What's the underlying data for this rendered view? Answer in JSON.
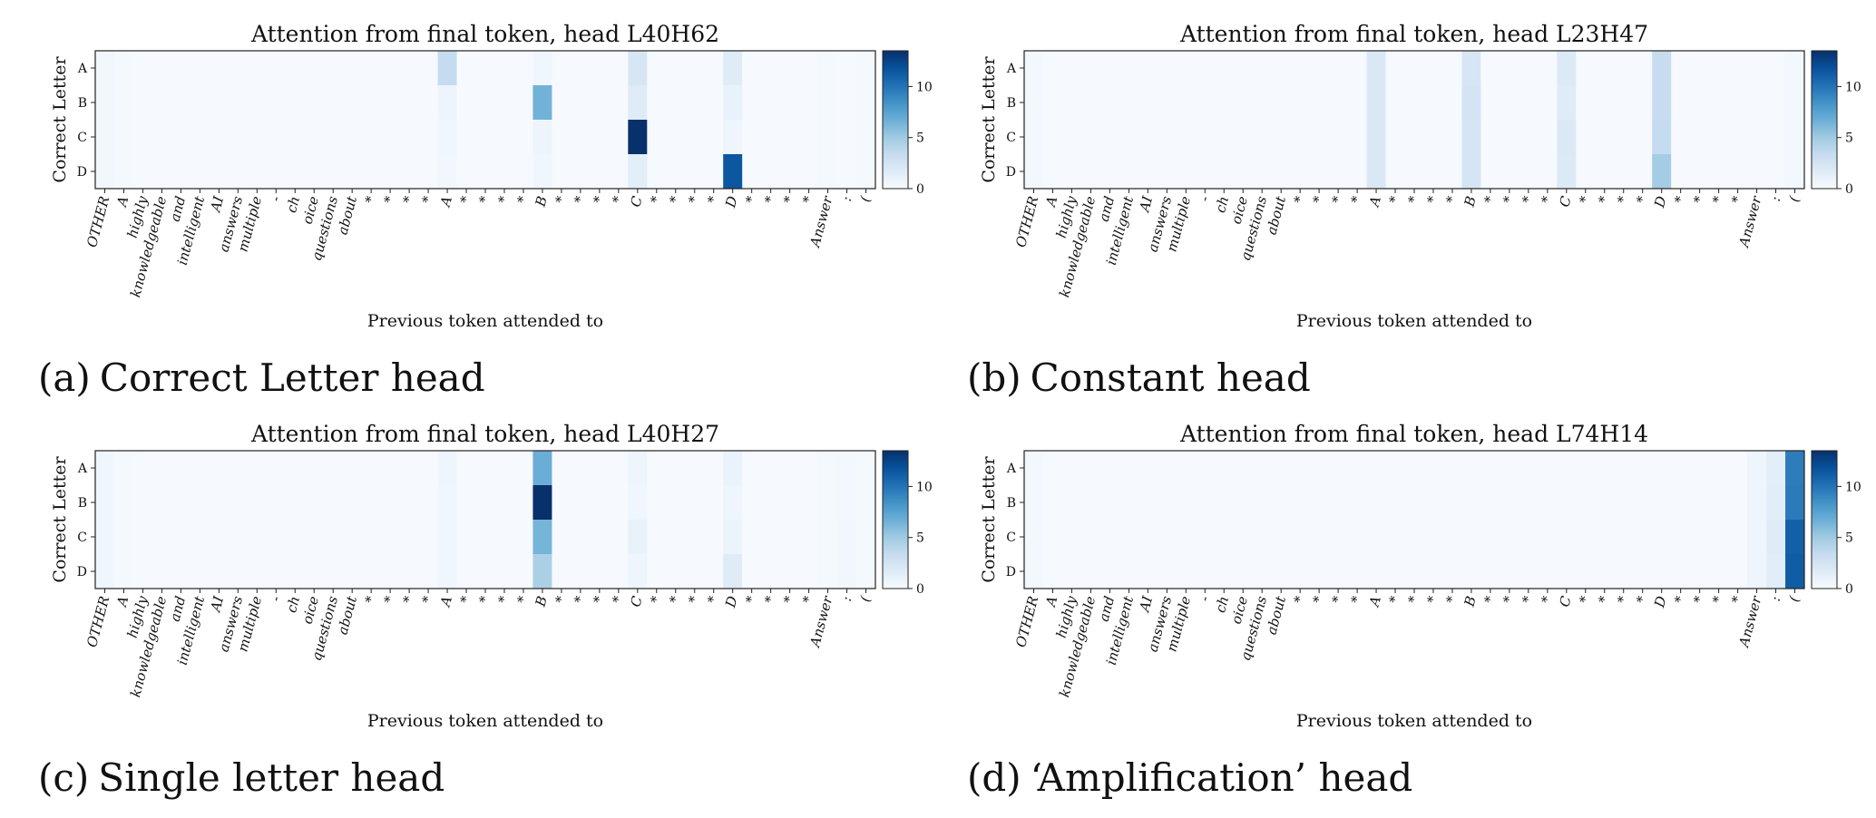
{
  "tokens": [
    "OTHER",
    "A",
    "highly",
    "knowledgeable",
    "and",
    "intelligent",
    "AI",
    "answers",
    "multiple",
    "-",
    "ch",
    "oice",
    "questions",
    "about",
    "*",
    "*",
    "*",
    "*",
    "A",
    "*",
    "*",
    "*",
    "*",
    "B",
    "*",
    "*",
    "*",
    "*",
    "C",
    "*",
    "*",
    "*",
    "*",
    "D",
    "*",
    "*",
    "*",
    "*",
    "Answer",
    ":",
    "("
  ],
  "rows": [
    "A",
    "B",
    "C",
    "D"
  ],
  "colorbar_ticks": [
    "0",
    "5",
    "10"
  ],
  "colorbar_max": 13.5,
  "palette": [
    "#f7fbff",
    "#deebf7",
    "#c6dbef",
    "#9ecae1",
    "#6baed6",
    "#4292c6",
    "#2171b5",
    "#08519c",
    "#08306b"
  ],
  "panels": [
    {
      "id": "a",
      "caption_label": "(a)",
      "caption_text": "Correct Letter head"
    },
    {
      "id": "b",
      "caption_label": "(b)",
      "caption_text": "Constant head"
    },
    {
      "id": "c",
      "caption_label": "(c)",
      "caption_text": "Single letter head"
    },
    {
      "id": "d",
      "caption_label": "(d)",
      "caption_text": "‘Amplification’ head"
    }
  ],
  "chart_data": [
    {
      "type": "heatmap",
      "title": "Attention from final token, head L40H62",
      "xlabel": "Previous token attended to",
      "ylabel": "Correct Letter",
      "zlim": [
        0,
        13.5
      ],
      "values": {
        "A": [
          0.4,
          0.2,
          0.1,
          0.1,
          0.1,
          0.1,
          0.1,
          0.1,
          0.1,
          0.1,
          0.1,
          0.1,
          0.1,
          0.1,
          0.1,
          0.1,
          0.1,
          0.1,
          3.4,
          0.1,
          0.1,
          0.1,
          0.1,
          0.5,
          0.1,
          0.1,
          0.1,
          0.1,
          2.2,
          0.1,
          0.1,
          0.1,
          0.1,
          1.6,
          0.1,
          0.1,
          0.1,
          0.1,
          0.2,
          0.1,
          0.2
        ],
        "B": [
          0.4,
          0.2,
          0.1,
          0.1,
          0.1,
          0.1,
          0.1,
          0.1,
          0.1,
          0.1,
          0.1,
          0.1,
          0.1,
          0.1,
          0.1,
          0.1,
          0.1,
          0.1,
          0.7,
          0.1,
          0.1,
          0.1,
          0.1,
          6.5,
          0.1,
          0.1,
          0.1,
          0.1,
          1.6,
          0.1,
          0.1,
          0.1,
          0.1,
          1.0,
          0.1,
          0.1,
          0.1,
          0.1,
          0.2,
          0.1,
          0.2
        ],
        "C": [
          0.4,
          0.2,
          0.1,
          0.1,
          0.1,
          0.1,
          0.1,
          0.1,
          0.1,
          0.1,
          0.1,
          0.1,
          0.1,
          0.1,
          0.1,
          0.1,
          0.1,
          0.1,
          0.5,
          0.1,
          0.1,
          0.1,
          0.1,
          0.7,
          0.1,
          0.1,
          0.1,
          0.1,
          13.5,
          0.1,
          0.1,
          0.1,
          0.1,
          0.6,
          0.1,
          0.1,
          0.1,
          0.1,
          0.2,
          0.1,
          0.2
        ],
        "D": [
          0.4,
          0.2,
          0.1,
          0.1,
          0.1,
          0.1,
          0.1,
          0.1,
          0.1,
          0.1,
          0.1,
          0.1,
          0.1,
          0.1,
          0.1,
          0.1,
          0.1,
          0.1,
          0.4,
          0.1,
          0.1,
          0.1,
          0.1,
          0.5,
          0.1,
          0.1,
          0.1,
          0.1,
          1.4,
          0.1,
          0.1,
          0.1,
          0.1,
          11.5,
          0.1,
          0.1,
          0.1,
          0.1,
          0.2,
          0.1,
          0.2
        ]
      }
    },
    {
      "type": "heatmap",
      "title": "Attention from final token, head L23H47",
      "xlabel": "Previous token attended to",
      "ylabel": "Correct Letter",
      "zlim": [
        0,
        13.5
      ],
      "values": {
        "A": [
          0.3,
          0.1,
          0.1,
          0.1,
          0.1,
          0.1,
          0.1,
          0.1,
          0.1,
          0.1,
          0.1,
          0.1,
          0.1,
          0.1,
          0.1,
          0.1,
          0.1,
          0.1,
          2.0,
          0.1,
          0.1,
          0.1,
          0.1,
          2.2,
          0.1,
          0.1,
          0.1,
          0.1,
          1.8,
          0.1,
          0.1,
          0.1,
          0.1,
          3.3,
          0.1,
          0.1,
          0.1,
          0.1,
          0.1,
          0.1,
          0.3
        ],
        "B": [
          0.3,
          0.1,
          0.1,
          0.1,
          0.1,
          0.1,
          0.1,
          0.1,
          0.1,
          0.1,
          0.1,
          0.1,
          0.1,
          0.1,
          0.1,
          0.1,
          0.1,
          0.1,
          2.0,
          0.1,
          0.1,
          0.1,
          0.1,
          2.4,
          0.1,
          0.1,
          0.1,
          0.1,
          1.6,
          0.1,
          0.1,
          0.1,
          0.1,
          3.3,
          0.1,
          0.1,
          0.1,
          0.1,
          0.1,
          0.1,
          0.3
        ],
        "C": [
          0.3,
          0.1,
          0.1,
          0.1,
          0.1,
          0.1,
          0.1,
          0.1,
          0.1,
          0.1,
          0.1,
          0.1,
          0.1,
          0.1,
          0.1,
          0.1,
          0.1,
          0.1,
          2.0,
          0.1,
          0.1,
          0.1,
          0.1,
          2.3,
          0.1,
          0.1,
          0.1,
          0.1,
          1.9,
          0.1,
          0.1,
          0.1,
          0.1,
          3.4,
          0.1,
          0.1,
          0.1,
          0.1,
          0.1,
          0.1,
          0.3
        ],
        "D": [
          0.3,
          0.1,
          0.1,
          0.1,
          0.1,
          0.1,
          0.1,
          0.1,
          0.1,
          0.1,
          0.1,
          0.1,
          0.1,
          0.1,
          0.1,
          0.1,
          0.1,
          0.1,
          2.0,
          0.1,
          0.1,
          0.1,
          0.1,
          2.3,
          0.1,
          0.1,
          0.1,
          0.1,
          1.8,
          0.1,
          0.1,
          0.1,
          0.1,
          4.8,
          0.1,
          0.1,
          0.1,
          0.1,
          0.1,
          0.1,
          0.3
        ]
      }
    },
    {
      "type": "heatmap",
      "title": "Attention from final token, head L40H27",
      "xlabel": "Previous token attended to",
      "ylabel": "Correct Letter",
      "zlim": [
        0,
        13.5
      ],
      "values": {
        "A": [
          0.5,
          0.2,
          0.1,
          0.1,
          0.1,
          0.1,
          0.1,
          0.1,
          0.1,
          0.1,
          0.1,
          0.1,
          0.1,
          0.1,
          0.1,
          0.1,
          0.1,
          0.1,
          0.6,
          0.1,
          0.1,
          0.1,
          0.1,
          6.8,
          0.1,
          0.1,
          0.1,
          0.1,
          0.6,
          0.1,
          0.1,
          0.1,
          0.1,
          0.9,
          0.1,
          0.1,
          0.1,
          0.1,
          0.2,
          0.3,
          0.2
        ],
        "B": [
          0.5,
          0.2,
          0.1,
          0.1,
          0.1,
          0.1,
          0.1,
          0.1,
          0.1,
          0.1,
          0.1,
          0.1,
          0.1,
          0.1,
          0.1,
          0.1,
          0.1,
          0.1,
          0.5,
          0.1,
          0.1,
          0.1,
          0.1,
          13.5,
          0.1,
          0.1,
          0.1,
          0.1,
          0.5,
          0.1,
          0.1,
          0.1,
          0.1,
          0.6,
          0.1,
          0.1,
          0.1,
          0.1,
          0.2,
          0.3,
          0.2
        ],
        "C": [
          0.5,
          0.2,
          0.1,
          0.1,
          0.1,
          0.1,
          0.1,
          0.1,
          0.1,
          0.1,
          0.1,
          0.1,
          0.1,
          0.1,
          0.1,
          0.1,
          0.1,
          0.1,
          0.5,
          0.1,
          0.1,
          0.1,
          0.1,
          6.4,
          0.1,
          0.1,
          0.1,
          0.1,
          1.0,
          0.1,
          0.1,
          0.1,
          0.1,
          0.8,
          0.1,
          0.1,
          0.1,
          0.1,
          0.2,
          0.4,
          0.2
        ],
        "D": [
          0.5,
          0.2,
          0.1,
          0.1,
          0.1,
          0.1,
          0.1,
          0.1,
          0.1,
          0.1,
          0.1,
          0.1,
          0.1,
          0.1,
          0.1,
          0.1,
          0.1,
          0.1,
          0.5,
          0.1,
          0.1,
          0.1,
          0.1,
          4.5,
          0.1,
          0.1,
          0.1,
          0.1,
          0.6,
          0.1,
          0.1,
          0.1,
          0.1,
          1.6,
          0.1,
          0.1,
          0.1,
          0.1,
          0.2,
          0.4,
          0.2
        ]
      }
    },
    {
      "type": "heatmap",
      "title": "Attention from final token, head L74H14",
      "xlabel": "Previous token attended to",
      "ylabel": "Correct Letter",
      "zlim": [
        0,
        13.5
      ],
      "values": {
        "A": [
          0.3,
          0.1,
          0.1,
          0.1,
          0.1,
          0.1,
          0.1,
          0.1,
          0.1,
          0.1,
          0.1,
          0.1,
          0.1,
          0.1,
          0.1,
          0.1,
          0.1,
          0.1,
          0.1,
          0.1,
          0.1,
          0.1,
          0.1,
          0.1,
          0.1,
          0.1,
          0.1,
          0.1,
          0.1,
          0.1,
          0.1,
          0.1,
          0.1,
          0.1,
          0.1,
          0.1,
          0.1,
          0.1,
          0.6,
          1.4,
          9.5
        ],
        "B": [
          0.3,
          0.1,
          0.1,
          0.1,
          0.1,
          0.1,
          0.1,
          0.1,
          0.1,
          0.1,
          0.1,
          0.1,
          0.1,
          0.1,
          0.1,
          0.1,
          0.1,
          0.1,
          0.1,
          0.1,
          0.1,
          0.1,
          0.1,
          0.1,
          0.1,
          0.1,
          0.1,
          0.1,
          0.1,
          0.1,
          0.1,
          0.1,
          0.1,
          0.1,
          0.1,
          0.1,
          0.1,
          0.1,
          0.6,
          1.5,
          9.6
        ],
        "C": [
          0.3,
          0.1,
          0.1,
          0.1,
          0.1,
          0.1,
          0.1,
          0.1,
          0.1,
          0.1,
          0.1,
          0.1,
          0.1,
          0.1,
          0.1,
          0.1,
          0.1,
          0.1,
          0.1,
          0.1,
          0.1,
          0.1,
          0.1,
          0.1,
          0.1,
          0.1,
          0.1,
          0.1,
          0.1,
          0.1,
          0.1,
          0.1,
          0.1,
          0.1,
          0.1,
          0.1,
          0.1,
          0.1,
          0.6,
          1.6,
          11.0
        ],
        "D": [
          0.3,
          0.1,
          0.1,
          0.1,
          0.1,
          0.1,
          0.1,
          0.1,
          0.1,
          0.1,
          0.1,
          0.1,
          0.1,
          0.1,
          0.1,
          0.1,
          0.1,
          0.1,
          0.1,
          0.1,
          0.1,
          0.1,
          0.1,
          0.1,
          0.1,
          0.1,
          0.1,
          0.1,
          0.1,
          0.1,
          0.1,
          0.1,
          0.1,
          0.1,
          0.1,
          0.1,
          0.1,
          0.1,
          0.6,
          1.5,
          11.2
        ]
      }
    }
  ]
}
